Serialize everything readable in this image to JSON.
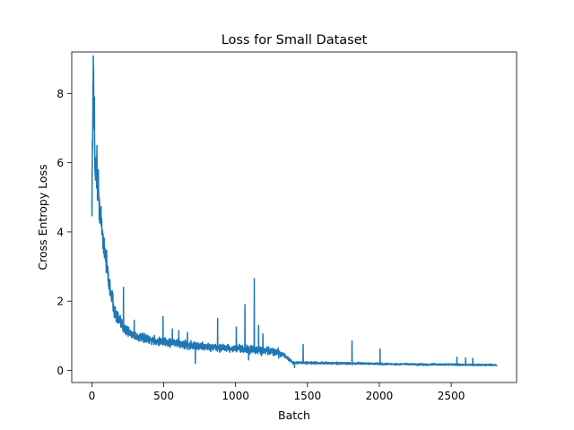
{
  "chart_data": {
    "type": "line",
    "title": "Loss for Small Dataset",
    "xlabel": "Batch",
    "ylabel": "Cross Entropy Loss",
    "xlim": [
      -140,
      2955
    ],
    "ylim": [
      -0.35,
      9.2
    ],
    "xticks": [
      0,
      500,
      1000,
      1500,
      2000,
      2500
    ],
    "yticks": [
      0,
      2,
      4,
      6,
      8
    ],
    "grid": false,
    "legend": "none",
    "n_points": 2820,
    "series": [
      {
        "color": "#1f77b4",
        "anchors": [
          [
            0,
            4.7
          ],
          [
            5,
            6.8
          ],
          [
            10,
            8.75
          ],
          [
            15,
            7.2
          ],
          [
            20,
            6.4
          ],
          [
            25,
            5.6
          ],
          [
            30,
            5.9
          ],
          [
            40,
            5.2
          ],
          [
            50,
            4.8
          ],
          [
            60,
            4.5
          ],
          [
            70,
            4.1
          ],
          [
            80,
            3.7
          ],
          [
            90,
            3.5
          ],
          [
            100,
            3.2
          ],
          [
            110,
            2.8
          ],
          [
            120,
            2.5
          ],
          [
            140,
            2.1
          ],
          [
            160,
            1.7
          ],
          [
            180,
            1.5
          ],
          [
            200,
            1.35
          ],
          [
            230,
            1.2
          ],
          [
            260,
            1.1
          ],
          [
            300,
            1.0
          ],
          [
            350,
            0.93
          ],
          [
            400,
            0.88
          ],
          [
            450,
            0.85
          ],
          [
            500,
            0.83
          ],
          [
            550,
            0.8
          ],
          [
            600,
            0.78
          ],
          [
            650,
            0.75
          ],
          [
            700,
            0.72
          ],
          [
            750,
            0.7
          ],
          [
            800,
            0.68
          ],
          [
            850,
            0.66
          ],
          [
            900,
            0.65
          ],
          [
            950,
            0.64
          ],
          [
            1000,
            0.63
          ],
          [
            1050,
            0.62
          ],
          [
            1100,
            0.6
          ],
          [
            1150,
            0.58
          ],
          [
            1200,
            0.56
          ],
          [
            1250,
            0.55
          ],
          [
            1300,
            0.53
          ],
          [
            1350,
            0.4
          ],
          [
            1400,
            0.22
          ],
          [
            1500,
            0.22
          ],
          [
            1600,
            0.21
          ],
          [
            1700,
            0.21
          ],
          [
            1800,
            0.2
          ],
          [
            1900,
            0.2
          ],
          [
            2000,
            0.19
          ],
          [
            2100,
            0.18
          ],
          [
            2200,
            0.18
          ],
          [
            2300,
            0.17
          ],
          [
            2400,
            0.17
          ],
          [
            2500,
            0.17
          ],
          [
            2600,
            0.16
          ],
          [
            2700,
            0.16
          ],
          [
            2800,
            0.16
          ],
          [
            2820,
            0.15
          ]
        ],
        "noise": [
          [
            0,
            0.7
          ],
          [
            100,
            0.5
          ],
          [
            200,
            0.25
          ],
          [
            300,
            0.18
          ],
          [
            1300,
            0.16
          ],
          [
            1380,
            0.05
          ],
          [
            2000,
            0.035
          ],
          [
            2820,
            0.03
          ]
        ],
        "spikes": [
          [
            12,
            8.75
          ],
          [
            18,
            7.9
          ],
          [
            35,
            6.5
          ],
          [
            45,
            5.8
          ],
          [
            220,
            2.4
          ],
          [
            295,
            1.45
          ],
          [
            495,
            1.55
          ],
          [
            560,
            1.2
          ],
          [
            605,
            1.15
          ],
          [
            665,
            1.1
          ],
          [
            875,
            1.5
          ],
          [
            1005,
            1.25
          ],
          [
            1065,
            1.9
          ],
          [
            1130,
            2.65
          ],
          [
            1160,
            1.3
          ],
          [
            1190,
            1.05
          ],
          [
            1470,
            0.75
          ],
          [
            1810,
            0.85
          ],
          [
            2005,
            0.62
          ],
          [
            2540,
            0.38
          ],
          [
            2600,
            0.36
          ],
          [
            2650,
            0.35
          ]
        ],
        "dips": [
          [
            720,
            0.2
          ],
          [
            1090,
            0.3
          ],
          [
            1300,
            0.35
          ],
          [
            1410,
            0.08
          ]
        ]
      }
    ]
  }
}
